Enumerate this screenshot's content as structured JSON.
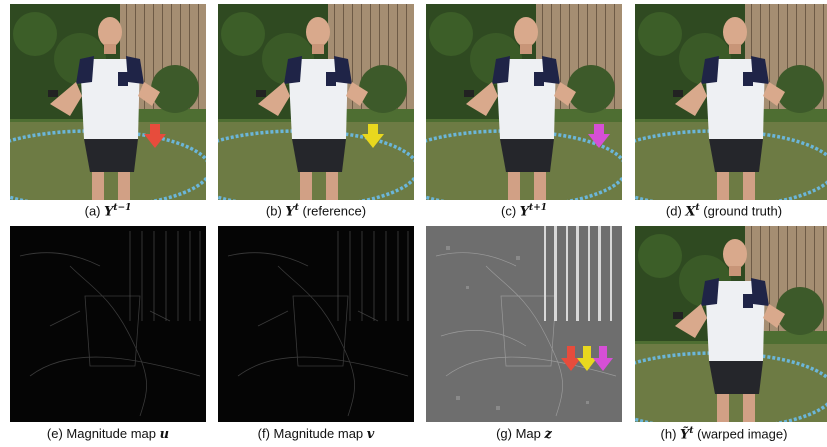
{
  "figure": {
    "panels": [
      {
        "id": "a",
        "kind": "photo",
        "caption_prefix": "(a) ",
        "symbol": "Y",
        "superscript": "t−1",
        "suffix": "",
        "arrow_color": "#e74c3c"
      },
      {
        "id": "b",
        "kind": "photo",
        "caption_prefix": "(b) ",
        "symbol": "Y",
        "superscript": "t",
        "suffix": " (reference)",
        "arrow_color": "#e8d81e"
      },
      {
        "id": "c",
        "kind": "photo",
        "caption_prefix": "(c) ",
        "symbol": "Y",
        "superscript": "t+1",
        "suffix": "",
        "arrow_color": "#d64fd6"
      },
      {
        "id": "d",
        "kind": "photo",
        "caption_prefix": "(d) ",
        "symbol": "X",
        "superscript": "t",
        "suffix": " (ground truth)",
        "arrow_color": ""
      },
      {
        "id": "e",
        "kind": "dark-map",
        "caption_prefix": "(e) Magnitude map ",
        "symbol": "u",
        "superscript": "",
        "suffix": ""
      },
      {
        "id": "f",
        "kind": "dark-map",
        "caption_prefix": "(f) Magnitude map ",
        "symbol": "v",
        "superscript": "",
        "suffix": ""
      },
      {
        "id": "g",
        "kind": "gray-map",
        "caption_prefix": "(g) Map ",
        "symbol": "z",
        "superscript": "",
        "suffix": ""
      },
      {
        "id": "h",
        "kind": "photo",
        "caption_prefix": "(h) ",
        "symbol": "Ỹ",
        "superscript": "t",
        "suffix": " (warped image)",
        "arrow_color": ""
      }
    ],
    "map_arrows": [
      "#e74c3c",
      "#e8d81e",
      "#d64fd6"
    ]
  }
}
